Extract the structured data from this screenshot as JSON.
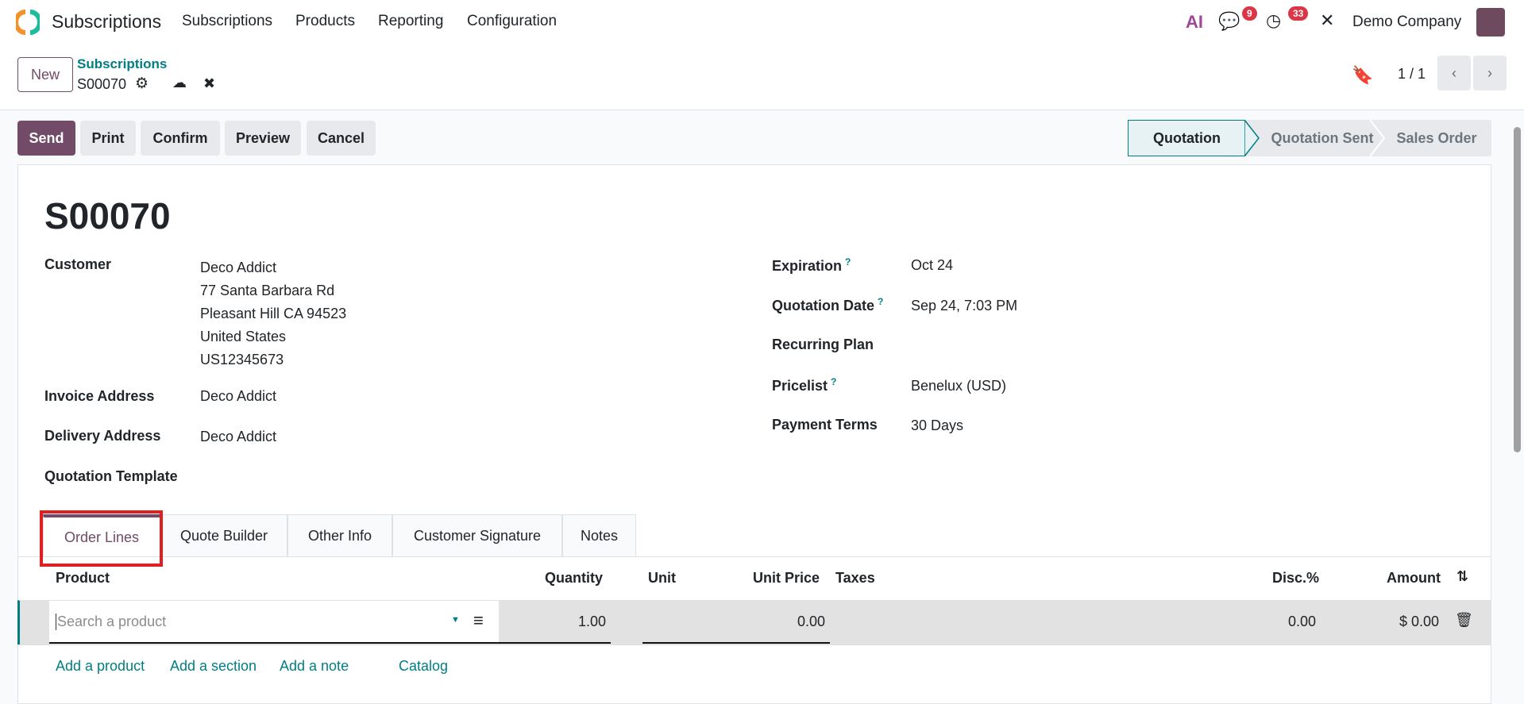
{
  "navbar": {
    "app_title": "Subscriptions",
    "menu": [
      "Subscriptions",
      "Products",
      "Reporting",
      "Configuration"
    ],
    "messages_count": "9",
    "activities_count": "33",
    "company": "Demo Company",
    "ai_label": "AI"
  },
  "control_panel": {
    "new_label": "New",
    "breadcrumb_parent": "Subscriptions",
    "record_name": "S00070",
    "pager": "1 / 1"
  },
  "actions": [
    "Send",
    "Print",
    "Confirm",
    "Preview",
    "Cancel"
  ],
  "statusbar": {
    "stages": [
      "Quotation",
      "Quotation Sent",
      "Sales Order"
    ],
    "active": "Quotation"
  },
  "form": {
    "title": "S00070",
    "left": {
      "customer_label": "Customer",
      "customer_lines": [
        "Deco Addict",
        "77 Santa Barbara Rd",
        "Pleasant Hill CA 94523",
        "United States",
        "US12345673"
      ],
      "invoice_label": "Invoice Address",
      "invoice_value": "Deco Addict",
      "delivery_label": "Delivery Address",
      "delivery_value": "Deco Addict",
      "template_label": "Quotation Template"
    },
    "right": {
      "expiration_label": "Expiration",
      "expiration_value": "Oct 24",
      "date_label": "Quotation Date",
      "date_value": "Sep 24, 7:03 PM",
      "plan_label": "Recurring Plan",
      "pricelist_label": "Pricelist",
      "pricelist_value": "Benelux (USD)",
      "terms_label": "Payment Terms",
      "terms_value": "30 Days",
      "help_mark": "?"
    }
  },
  "tabs": [
    "Order Lines",
    "Quote Builder",
    "Other Info",
    "Customer Signature",
    "Notes"
  ],
  "order_lines": {
    "columns": [
      "Product",
      "Quantity",
      "Unit",
      "Unit Price",
      "Taxes",
      "Disc.%",
      "Amount"
    ],
    "row": {
      "product_placeholder": "Search a product",
      "quantity": "1.00",
      "unit_price": "0.00",
      "discount": "0.00",
      "amount": "$ 0.00"
    },
    "links": [
      "Add a product",
      "Add a section",
      "Add a note",
      "Catalog"
    ]
  },
  "colors": {
    "primary": "#714b67",
    "teal": "#017e84",
    "highlight": "#e02020"
  }
}
